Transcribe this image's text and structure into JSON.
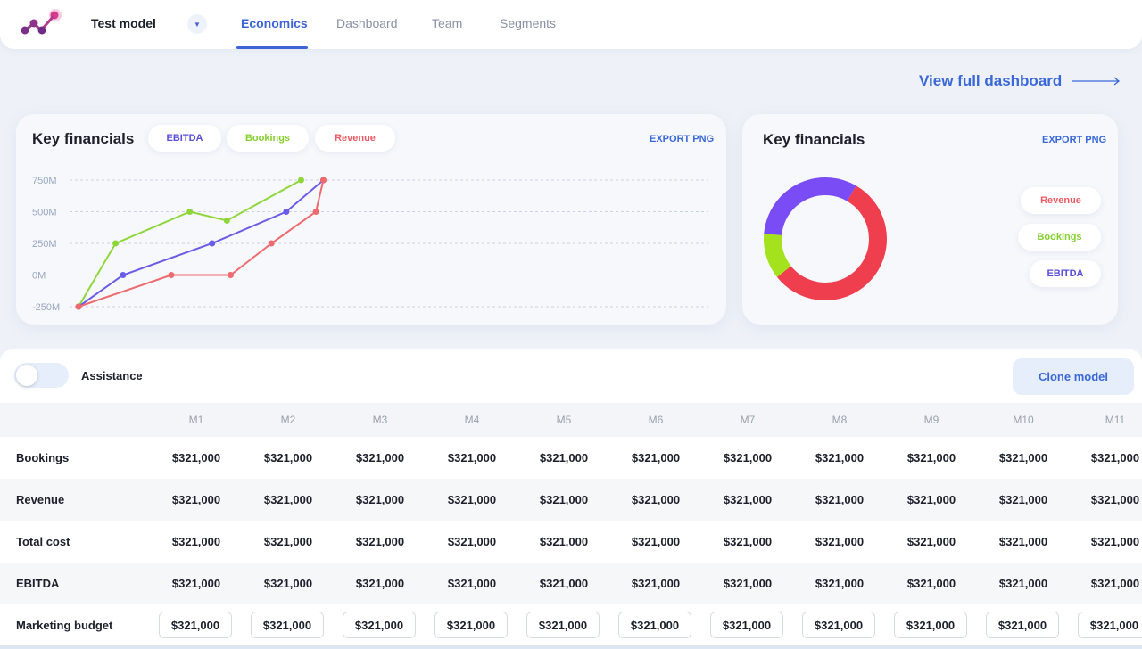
{
  "header": {
    "model_name": "Test model",
    "tabs": [
      {
        "label": "Economics",
        "active": true
      },
      {
        "label": "Dashboard",
        "active": false
      },
      {
        "label": "Team",
        "active": false
      },
      {
        "label": "Segments",
        "active": false
      }
    ]
  },
  "view_full_dashboard": "View full dashboard",
  "line_card": {
    "title": "Key financials",
    "filters": [
      "EBITDA",
      "Bookings",
      "Revenue"
    ],
    "export_label": "EXPORT PNG"
  },
  "donut_card": {
    "title": "Key financials",
    "export_label": "EXPORT PNG",
    "legend": [
      "Revenue",
      "Bookings",
      "EBITDA"
    ]
  },
  "colors": {
    "ebitda": "#6b5ce7",
    "bookings": "#8fd63a",
    "revenue": "#ef6a6e",
    "accent": "#3a68d8"
  },
  "chart_data": [
    {
      "type": "line",
      "title": "Key financials",
      "y_ticks": [
        "750M",
        "500M",
        "250M",
        "0M",
        "-250M"
      ],
      "ylim": [
        -250,
        750
      ],
      "grid": true,
      "series": [
        {
          "name": "Bookings",
          "color": "#8fd63a",
          "values": [
            -250,
            250,
            500,
            430,
            750
          ]
        },
        {
          "name": "EBITDA",
          "color": "#6b5ce7",
          "values": [
            -250,
            0,
            250,
            500,
            750
          ]
        },
        {
          "name": "Revenue",
          "color": "#ef6a6e",
          "values": [
            -250,
            0,
            0,
            250,
            500,
            750
          ]
        }
      ],
      "x_positions": {
        "Bookings": [
          0,
          1,
          3,
          4,
          6
        ],
        "EBITDA": [
          0,
          1.2,
          3.6,
          5.6,
          6.6
        ],
        "Revenue": [
          0,
          2.5,
          4.1,
          5.2,
          6.4,
          6.6
        ]
      }
    },
    {
      "type": "pie",
      "title": "Key financials",
      "series": [
        {
          "name": "Revenue",
          "color": "#ef3f4f",
          "value": 56
        },
        {
          "name": "Bookings",
          "color": "#a3e21c",
          "value": 12
        },
        {
          "name": "EBITDA",
          "color": "#7a4cf5",
          "value": 32
        }
      ]
    }
  ],
  "assistance": {
    "label": "Assistance",
    "enabled": false
  },
  "clone_button": "Clone model",
  "table": {
    "columns": [
      "M1",
      "M2",
      "M3",
      "M4",
      "M5",
      "M6",
      "M7",
      "M8",
      "M9",
      "M10",
      "M11"
    ],
    "rows": [
      {
        "label": "Bookings",
        "editable": false,
        "values": [
          "$321,000",
          "$321,000",
          "$321,000",
          "$321,000",
          "$321,000",
          "$321,000",
          "$321,000",
          "$321,000",
          "$321,000",
          "$321,000",
          "$321,000"
        ]
      },
      {
        "label": "Revenue",
        "editable": false,
        "values": [
          "$321,000",
          "$321,000",
          "$321,000",
          "$321,000",
          "$321,000",
          "$321,000",
          "$321,000",
          "$321,000",
          "$321,000",
          "$321,000",
          "$321,000"
        ]
      },
      {
        "label": "Total cost",
        "editable": false,
        "values": [
          "$321,000",
          "$321,000",
          "$321,000",
          "$321,000",
          "$321,000",
          "$321,000",
          "$321,000",
          "$321,000",
          "$321,000",
          "$321,000",
          "$321,000"
        ]
      },
      {
        "label": "EBITDA",
        "editable": false,
        "values": [
          "$321,000",
          "$321,000",
          "$321,000",
          "$321,000",
          "$321,000",
          "$321,000",
          "$321,000",
          "$321,000",
          "$321,000",
          "$321,000",
          "$321,000"
        ]
      },
      {
        "label": "Marketing budget",
        "editable": true,
        "values": [
          "$321,000",
          "$321,000",
          "$321,000",
          "$321,000",
          "$321,000",
          "$321,000",
          "$321,000",
          "$321,000",
          "$321,000",
          "$321,000",
          "$321,000"
        ]
      }
    ]
  }
}
